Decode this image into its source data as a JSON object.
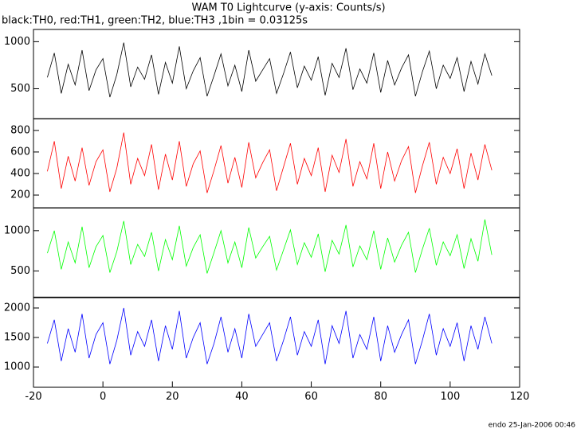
{
  "footer": "endo 25-Jan-2006 00:46",
  "chart_data": [
    {
      "type": "line",
      "title": "WAM T0 Lightcurve (y-axis: Counts/s)",
      "subtitle": "black:TH0, red:TH1, green:TH2, blue:TH3 ,1bin = 0.03125s",
      "x": [
        -16,
        -14,
        -12,
        -10,
        -8,
        -6,
        -4,
        -2,
        0,
        2,
        4,
        6,
        8,
        10,
        12,
        14,
        16,
        18,
        20,
        22,
        24,
        26,
        28,
        30,
        32,
        34,
        36,
        38,
        40,
        42,
        44,
        46,
        48,
        50,
        52,
        54,
        56,
        58,
        60,
        62,
        64,
        66,
        68,
        70,
        72,
        74,
        76,
        78,
        80,
        82,
        84,
        86,
        88,
        90,
        92,
        94,
        96,
        98,
        100,
        102,
        104,
        106,
        108,
        110,
        112
      ],
      "series": [
        {
          "color": "#000000",
          "values": [
            620,
            880,
            450,
            760,
            540,
            910,
            480,
            700,
            820,
            410,
            650,
            990,
            520,
            730,
            600,
            860,
            440,
            780,
            560,
            950,
            500,
            690,
            830,
            420,
            640,
            870,
            530,
            750,
            470,
            910,
            580,
            700,
            820,
            450,
            660,
            890,
            510,
            740,
            590,
            840,
            430,
            770,
            620,
            930,
            490,
            710,
            560,
            880,
            460,
            800,
            540,
            720,
            860,
            420,
            680,
            900,
            500,
            750,
            610,
            830,
            470,
            790,
            550,
            870,
            640
          ]
        }
      ],
      "xlim": [
        -20,
        120
      ],
      "ylim": [
        180,
        1130
      ],
      "yticks": [
        500,
        1000
      ]
    },
    {
      "type": "line",
      "x": [
        -16,
        -14,
        -12,
        -10,
        -8,
        -6,
        -4,
        -2,
        0,
        2,
        4,
        6,
        8,
        10,
        12,
        14,
        16,
        18,
        20,
        22,
        24,
        26,
        28,
        30,
        32,
        34,
        36,
        38,
        40,
        42,
        44,
        46,
        48,
        50,
        52,
        54,
        56,
        58,
        60,
        62,
        64,
        66,
        68,
        70,
        72,
        74,
        76,
        78,
        80,
        82,
        84,
        86,
        88,
        90,
        92,
        94,
        96,
        98,
        100,
        102,
        104,
        106,
        108,
        110,
        112
      ],
      "series": [
        {
          "color": "#ff0000",
          "values": [
            420,
            700,
            260,
            560,
            330,
            640,
            290,
            510,
            620,
            230,
            450,
            780,
            300,
            540,
            380,
            670,
            250,
            580,
            340,
            700,
            280,
            490,
            610,
            220,
            430,
            660,
            310,
            550,
            270,
            690,
            360,
            500,
            620,
            240,
            460,
            680,
            300,
            540,
            380,
            640,
            230,
            570,
            410,
            720,
            280,
            510,
            350,
            680,
            260,
            600,
            330,
            520,
            650,
            220,
            470,
            690,
            300,
            550,
            400,
            630,
            260,
            590,
            340,
            670,
            430
          ]
        }
      ],
      "xlim": [
        -20,
        120
      ],
      "ylim": [
        80,
        910
      ],
      "yticks": [
        200,
        400,
        600,
        800
      ]
    },
    {
      "type": "line",
      "x": [
        -16,
        -14,
        -12,
        -10,
        -8,
        -6,
        -4,
        -2,
        0,
        2,
        4,
        6,
        8,
        10,
        12,
        14,
        16,
        18,
        20,
        22,
        24,
        26,
        28,
        30,
        32,
        34,
        36,
        38,
        40,
        42,
        44,
        46,
        48,
        50,
        52,
        54,
        56,
        58,
        60,
        62,
        64,
        66,
        68,
        70,
        72,
        74,
        76,
        78,
        80,
        82,
        84,
        86,
        88,
        90,
        92,
        94,
        96,
        98,
        100,
        102,
        104,
        106,
        108,
        110,
        112
      ],
      "series": [
        {
          "color": "#00ff00",
          "values": [
            720,
            1000,
            520,
            860,
            600,
            1050,
            540,
            800,
            940,
            480,
            740,
            1120,
            580,
            830,
            680,
            980,
            500,
            890,
            640,
            1060,
            560,
            790,
            950,
            470,
            730,
            1000,
            600,
            860,
            540,
            1040,
            660,
            800,
            930,
            510,
            760,
            1010,
            580,
            850,
            670,
            960,
            490,
            880,
            710,
            1070,
            550,
            810,
            640,
            1000,
            520,
            910,
            610,
            820,
            980,
            480,
            770,
            1030,
            570,
            860,
            690,
            950,
            530,
            900,
            620,
            1140,
            700
          ]
        }
      ],
      "xlim": [
        -20,
        120
      ],
      "ylim": [
        175,
        1285
      ],
      "yticks": [
        500,
        1000
      ]
    },
    {
      "type": "line",
      "x": [
        -16,
        -14,
        -12,
        -10,
        -8,
        -6,
        -4,
        -2,
        0,
        2,
        4,
        6,
        8,
        10,
        12,
        14,
        16,
        18,
        20,
        22,
        24,
        26,
        28,
        30,
        32,
        34,
        36,
        38,
        40,
        42,
        44,
        46,
        48,
        50,
        52,
        54,
        56,
        58,
        60,
        62,
        64,
        66,
        68,
        70,
        72,
        74,
        76,
        78,
        80,
        82,
        84,
        86,
        88,
        90,
        92,
        94,
        96,
        98,
        100,
        102,
        104,
        106,
        108,
        110,
        112
      ],
      "series": [
        {
          "color": "#0000ff",
          "values": [
            1400,
            1800,
            1100,
            1650,
            1250,
            1900,
            1150,
            1550,
            1750,
            1050,
            1450,
            2000,
            1200,
            1600,
            1350,
            1800,
            1100,
            1700,
            1300,
            1950,
            1150,
            1500,
            1750,
            1050,
            1400,
            1850,
            1250,
            1650,
            1150,
            1900,
            1350,
            1550,
            1750,
            1100,
            1450,
            1850,
            1200,
            1600,
            1350,
            1800,
            1050,
            1700,
            1400,
            1950,
            1150,
            1550,
            1300,
            1850,
            1100,
            1700,
            1250,
            1550,
            1800,
            1050,
            1450,
            1900,
            1200,
            1650,
            1350,
            1750,
            1100,
            1700,
            1300,
            1850,
            1400
          ]
        }
      ],
      "xlim": [
        -20,
        120
      ],
      "ylim": [
        660,
        2175
      ],
      "yticks": [
        1000,
        1500,
        2000
      ],
      "xticks": [
        -20,
        0,
        20,
        40,
        60,
        80,
        100,
        120
      ]
    }
  ]
}
